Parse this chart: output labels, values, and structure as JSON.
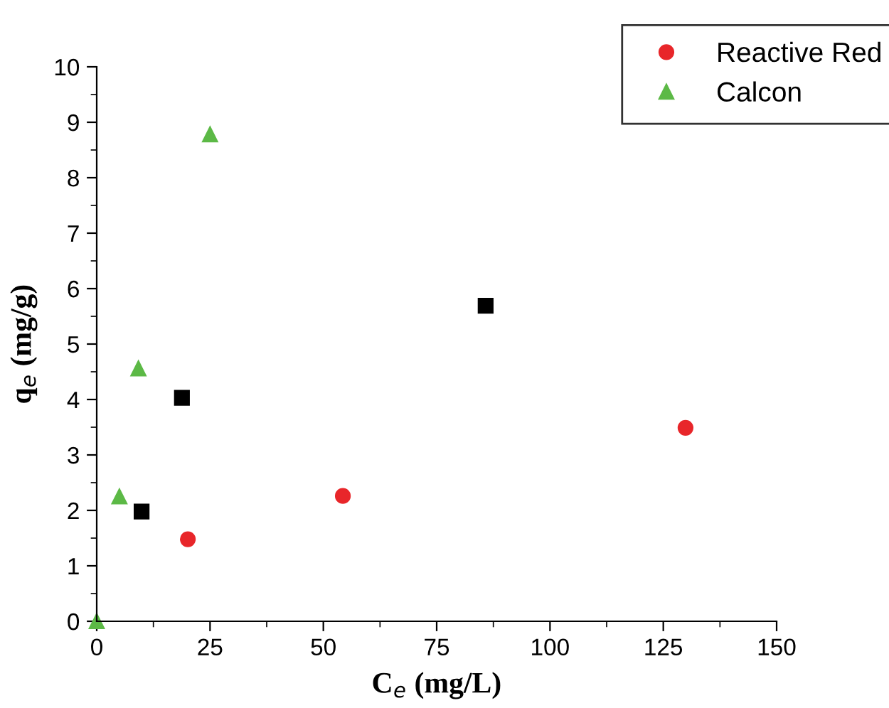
{
  "chart_data": {
    "type": "scatter",
    "xlabel": "C$_{e}$ (mg/L)",
    "ylabel": "q$_{e}$ (mg/g)",
    "xlim": [
      0,
      150
    ],
    "xticks": [
      0,
      25,
      50,
      75,
      100,
      125,
      150
    ],
    "ylim": [
      0,
      10
    ],
    "yticks": [
      0,
      1,
      2,
      3,
      4,
      5,
      6,
      7,
      8,
      9,
      10
    ],
    "grid": false,
    "legend": "top right",
    "series": [
      {
        "color": "#000000",
        "marker": "square",
        "x": [
          9.9,
          18.8,
          85.8
        ],
        "values": [
          1.98,
          4.03,
          5.69
        ]
      },
      {
        "name": "Reactive Red",
        "color": "#e8262a",
        "marker": "circle",
        "x": [
          20.1,
          54.3,
          129.9
        ],
        "values": [
          1.48,
          2.26,
          3.49
        ]
      },
      {
        "name": "Calcon",
        "color": "#5cb946",
        "marker": "triangle",
        "x": [
          0,
          5.0,
          9.2,
          25.0
        ],
        "values": [
          0,
          2.25,
          4.56,
          8.78
        ]
      }
    ]
  }
}
